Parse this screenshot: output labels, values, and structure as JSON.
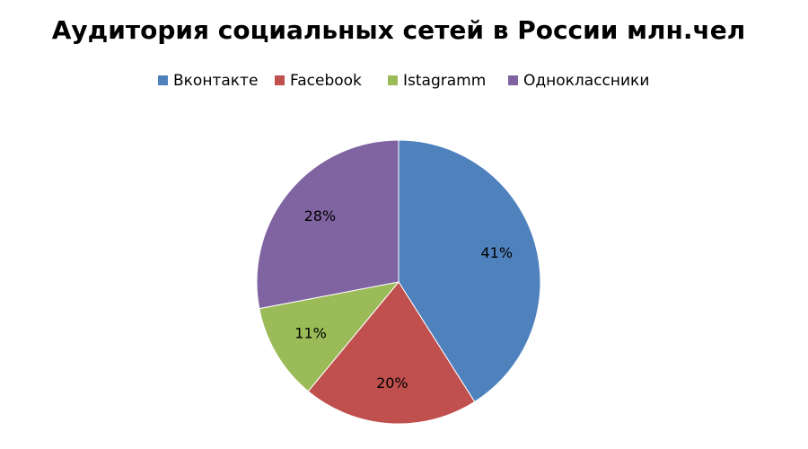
{
  "chart_data": {
    "type": "pie",
    "title": "Аудитория социальных сетей в России млн.чел",
    "categories": [
      "Вконтакте",
      "Facebook",
      "Istagramm",
      "Одноклассники"
    ],
    "values": [
      41,
      20,
      11,
      28
    ],
    "value_labels": [
      "41%",
      "20%",
      "11%",
      "28%"
    ],
    "colors": [
      "#4f81bd",
      "#c0504d",
      "#9bbb59",
      "#8064a2"
    ],
    "legend": "top"
  }
}
